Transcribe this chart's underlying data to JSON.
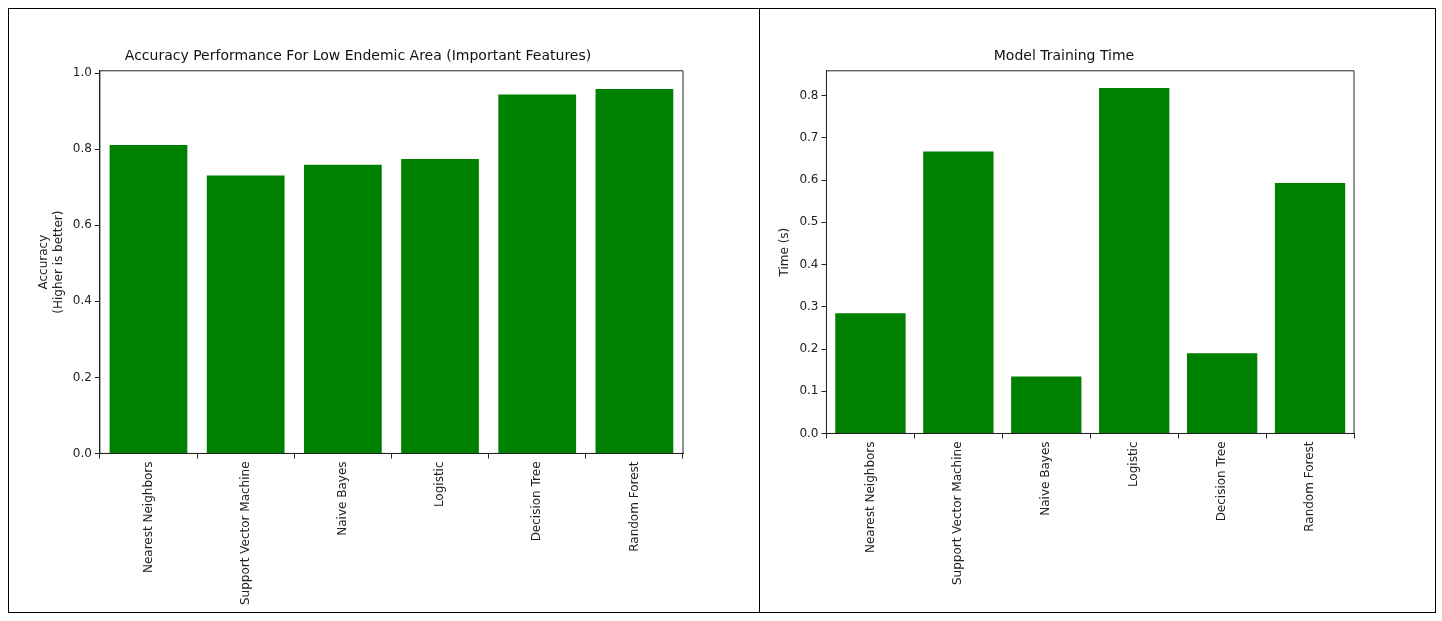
{
  "chart_data": [
    {
      "type": "bar",
      "title": "Accuracy Performance For Low Endemic Area (Important Features)",
      "ylabel": "Accuracy\n(Higher is better)",
      "categories": [
        "Nearest Neighbors",
        "Support Vector Machine",
        "Naive Bayes",
        "Logistic",
        "Decision Tree",
        "Random Forest"
      ],
      "values": [
        0.811,
        0.731,
        0.759,
        0.774,
        0.944,
        0.958
      ],
      "color": "#008000",
      "ylim": [
        0,
        1.006
      ],
      "yticks": [
        {
          "value": 0,
          "label": "0.0"
        },
        {
          "value": 0.2,
          "label": "0.2"
        },
        {
          "value": 0.4,
          "label": "0.4"
        },
        {
          "value": 0.6,
          "label": "0.6"
        },
        {
          "value": 0.8,
          "label": "0.8"
        },
        {
          "value": 1,
          "label": "1.0"
        }
      ],
      "grid": false,
      "legend": false
    },
    {
      "type": "bar",
      "title": "Model Training Time",
      "ylabel": "Time (s)",
      "categories": [
        "Nearest Neighbors",
        "Support Vector Machine",
        "Naive Bayes",
        "Logistic",
        "Decision Tree",
        "Random Forest"
      ],
      "values": [
        0.285,
        0.668,
        0.135,
        0.818,
        0.19,
        0.593
      ],
      "color": "#008000",
      "ylim": [
        0,
        0.859
      ],
      "yticks": [
        {
          "value": 0,
          "label": "0.0"
        },
        {
          "value": 0.1,
          "label": "0.1"
        },
        {
          "value": 0.2,
          "label": "0.2"
        },
        {
          "value": 0.3,
          "label": "0.3"
        },
        {
          "value": 0.4,
          "label": "0.4"
        },
        {
          "value": 0.5,
          "label": "0.5"
        },
        {
          "value": 0.6,
          "label": "0.6"
        },
        {
          "value": 0.7,
          "label": "0.7"
        },
        {
          "value": 0.8,
          "label": "0.8"
        }
      ],
      "grid": false,
      "legend": false
    }
  ]
}
